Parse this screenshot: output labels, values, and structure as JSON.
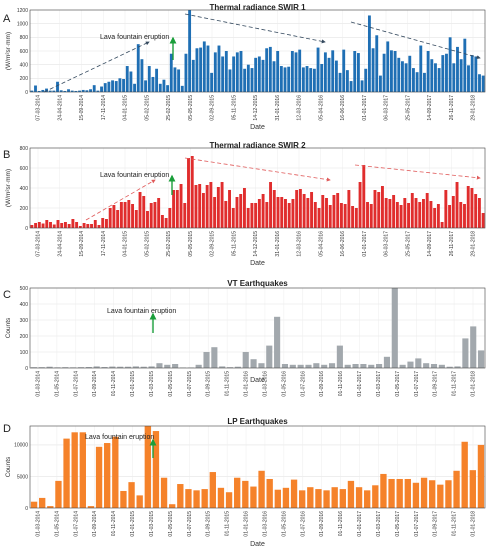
{
  "chart_data": [
    {
      "type": "bar",
      "panel_letter": "A",
      "title": "Thermal radiance SWIR 1",
      "xlabel": "Date",
      "ylabel": "(W/m²sr·mm)",
      "ylim": [
        0,
        1200
      ],
      "yticks": [
        0,
        200,
        400,
        600,
        800,
        1000,
        1200
      ],
      "color": "#1f6fb4",
      "grid": true,
      "xtick_labels": [
        "07-03-2014",
        "24-04-2014",
        "15-09-2014",
        "17-11-2014",
        "04-01-2015",
        "05-02-2015",
        "25-02-2015",
        "05-05-2015",
        "02-09-2015",
        "05-11-2015",
        "14-12-2015",
        "31-01-2016",
        "12-03-2016",
        "05-04-2016",
        "16-06-2016",
        "01-01-2017",
        "06-03-2017",
        "25-05-2017",
        "14-09-2017",
        "26-11-2017",
        "29-01-2018"
      ],
      "values": [
        20,
        95,
        15,
        30,
        50,
        20,
        20,
        150,
        25,
        15,
        40,
        20,
        15,
        20,
        30,
        25,
        40,
        100,
        20,
        80,
        130,
        150,
        170,
        160,
        200,
        190,
        380,
        300,
        120,
        700,
        480,
        170,
        380,
        220,
        340,
        120,
        180,
        100,
        560,
        360,
        330,
        90,
        560,
        1200,
        470,
        640,
        650,
        740,
        680,
        280,
        580,
        680,
        520,
        600,
        330,
        520,
        580,
        600,
        340,
        400,
        350,
        500,
        520,
        470,
        640,
        660,
        450,
        600,
        380,
        360,
        370,
        600,
        580,
        620,
        360,
        380,
        350,
        340,
        650,
        410,
        580,
        500,
        610,
        460,
        280,
        620,
        320,
        160,
        600,
        570,
        170,
        340,
        1120,
        640,
        830,
        240,
        560,
        740,
        610,
        600,
        500,
        450,
        420,
        530,
        350,
        290,
        680,
        280,
        600,
        480,
        420,
        350,
        540,
        560,
        800,
        420,
        660,
        480,
        780,
        390,
        540,
        520,
        260,
        240
      ],
      "annotation": "Lava fountain eruption"
    },
    {
      "type": "bar",
      "panel_letter": "B",
      "title": "Thermal radiance SWIR 2",
      "xlabel": "Date",
      "ylabel": "(W/m²sr·mm)",
      "ylim": [
        0,
        800
      ],
      "yticks": [
        0,
        200,
        400,
        600,
        800
      ],
      "color": "#e02d2d",
      "grid": true,
      "xtick_labels": [
        "07-03-2014",
        "24-04-2014",
        "15-09-2014",
        "17-11-2014",
        "04-01-2015",
        "05-02-2015",
        "25-02-2015",
        "05-05-2015",
        "02-09-2015",
        "05-11-2015",
        "14-12-2015",
        "31-01-2016",
        "12-03-2016",
        "05-04-2016",
        "16-06-2016",
        "01-01-2017",
        "06-03-2017",
        "25-05-2017",
        "14-09-2017",
        "26-11-2017",
        "29-01-2018"
      ],
      "values": [
        30,
        50,
        60,
        45,
        80,
        60,
        35,
        80,
        50,
        60,
        40,
        90,
        60,
        20,
        50,
        40,
        40,
        80,
        30,
        100,
        90,
        200,
        230,
        180,
        260,
        260,
        280,
        240,
        180,
        360,
        320,
        170,
        250,
        260,
        300,
        130,
        100,
        200,
        380,
        380,
        440,
        250,
        700,
        720,
        430,
        440,
        350,
        430,
        460,
        310,
        410,
        460,
        270,
        380,
        200,
        310,
        340,
        400,
        200,
        250,
        250,
        290,
        340,
        260,
        460,
        380,
        310,
        310,
        290,
        250,
        290,
        380,
        390,
        340,
        300,
        360,
        260,
        200,
        330,
        300,
        230,
        330,
        350,
        250,
        240,
        380,
        220,
        200,
        460,
        630,
        260,
        240,
        380,
        360,
        420,
        300,
        290,
        330,
        260,
        230,
        300,
        250,
        350,
        300,
        260,
        290,
        350,
        270,
        200,
        240,
        60,
        380,
        230,
        320,
        460,
        260,
        240,
        420,
        400,
        340,
        300,
        150
      ],
      "annotation": "Lava fountain eruption"
    },
    {
      "type": "bar",
      "panel_letter": "C",
      "title": "VT Earthquakes",
      "xlabel": "Date",
      "ylabel": "Counts",
      "ylim": [
        0,
        500
      ],
      "yticks": [
        0,
        100,
        200,
        300,
        400,
        500
      ],
      "color": "#a2a8ad",
      "grid": true,
      "xtick_labels": [
        "01-03-2014",
        "01-05-2014",
        "01-07-2014",
        "01-09-2014",
        "01-11-2014",
        "01-01-2015",
        "01-03-2015",
        "01-05-2015",
        "01-07-2015",
        "01-09-2015",
        "01-11-2015",
        "01-01-2016",
        "01-03-2016",
        "01-05-2016",
        "01-07-2016",
        "01-09-2016",
        "01-11-2016",
        "01-01-2017",
        "01-03-2017",
        "01-05-2017",
        "01-07-2017",
        "01-09-2017",
        "01-11-2017",
        "01-01-2018"
      ],
      "values": [
        5,
        5,
        8,
        4,
        5,
        4,
        5,
        6,
        10,
        6,
        9,
        8,
        8,
        10,
        8,
        10,
        30,
        20,
        25,
        3,
        3,
        20,
        100,
        130,
        10,
        5,
        8,
        100,
        55,
        30,
        140,
        320,
        25,
        20,
        20,
        20,
        30,
        20,
        30,
        140,
        20,
        25,
        25,
        20,
        25,
        70,
        500,
        20,
        40,
        60,
        30,
        25,
        20,
        8,
        10,
        185,
        260,
        110
      ],
      "annotation": "Lava fountain eruption"
    },
    {
      "type": "bar",
      "panel_letter": "D",
      "title": "LP Earthquakes",
      "xlabel": "Date",
      "ylabel": "Counts",
      "ylim": [
        0,
        13000
      ],
      "yticks": [
        0,
        5000,
        10000
      ],
      "color": "#f5822a",
      "grid": true,
      "xtick_labels": [
        "01-03-2014",
        "01-05-2014",
        "01-07-2014",
        "01-09-2014",
        "01-11-2014",
        "01-01-2015",
        "01-03-2015",
        "01-05-2015",
        "01-07-2015",
        "01-09-2015",
        "01-11-2015",
        "01-01-2016",
        "01-03-2016",
        "01-05-2016",
        "01-07-2016",
        "01-09-2016",
        "01-11-2016",
        "01-01-2017",
        "01-03-2017",
        "01-05-2017",
        "01-07-2017",
        "01-09-2017",
        "01-11-2017",
        "01-01-2018"
      ],
      "values": [
        1000,
        1600,
        300,
        4300,
        11000,
        12000,
        12000,
        300,
        9700,
        10300,
        11300,
        2700,
        4100,
        2000,
        13000,
        12200,
        4800,
        600,
        3800,
        3000,
        2800,
        3000,
        5700,
        3200,
        2500,
        4800,
        4300,
        3400,
        5900,
        4600,
        2900,
        3200,
        4500,
        2800,
        3300,
        3000,
        2800,
        3300,
        3000,
        4300,
        3300,
        2800,
        3600,
        5400,
        4600,
        4600,
        4600,
        4000,
        4800,
        4400,
        3700,
        4400,
        5900,
        10500,
        6000,
        10000
      ],
      "annotation": "Lava fountain eruption"
    }
  ]
}
